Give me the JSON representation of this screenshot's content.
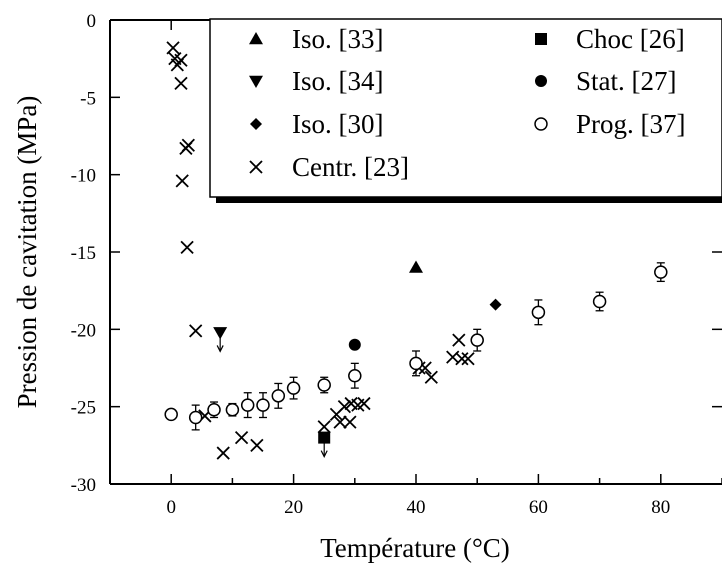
{
  "chart_data": {
    "type": "scatter",
    "xlabel": "Température (°C)",
    "ylabel": "Pression de cavitation (MPa)",
    "xlim": [
      -10,
      90
    ],
    "ylim": [
      -30,
      0
    ],
    "x_ticks": [
      0,
      20,
      40,
      60,
      80
    ],
    "y_ticks": [
      0,
      -5,
      -10,
      -15,
      -20,
      -25,
      -30
    ],
    "grid": false,
    "legend_position": "top-right",
    "series": [
      {
        "name": "Iso. [33]",
        "marker": "triangle-up",
        "points": [
          {
            "x": 40,
            "y": -16
          }
        ]
      },
      {
        "name": "Iso. [34]",
        "marker": "triangle-down",
        "upper_bound": true,
        "points": [
          {
            "x": 8,
            "y": -20.2
          }
        ]
      },
      {
        "name": "Iso. [30]",
        "marker": "diamond",
        "points": [
          {
            "x": 53,
            "y": -18.4
          }
        ]
      },
      {
        "name": "Centr. [23]",
        "marker": "cross",
        "points": [
          {
            "x": 0.3,
            "y": -1.8
          },
          {
            "x": 0.6,
            "y": -2.5
          },
          {
            "x": 1.0,
            "y": -2.9
          },
          {
            "x": 1.6,
            "y": -2.6
          },
          {
            "x": 1.6,
            "y": -4.1
          },
          {
            "x": 2.4,
            "y": -8.3
          },
          {
            "x": 2.8,
            "y": -8.1
          },
          {
            "x": 1.8,
            "y": -10.4
          },
          {
            "x": 2.6,
            "y": -14.7
          },
          {
            "x": 4.0,
            "y": -20.1
          },
          {
            "x": 5.5,
            "y": -25.6
          },
          {
            "x": 8.5,
            "y": -28.0
          },
          {
            "x": 11.5,
            "y": -27.0
          },
          {
            "x": 14.0,
            "y": -27.5
          },
          {
            "x": 25.0,
            "y": -26.3
          },
          {
            "x": 27.0,
            "y": -25.5
          },
          {
            "x": 27.6,
            "y": -26.0
          },
          {
            "x": 28.3,
            "y": -25.0
          },
          {
            "x": 29.2,
            "y": -26.0
          },
          {
            "x": 29.4,
            "y": -24.8
          },
          {
            "x": 30.5,
            "y": -24.9
          },
          {
            "x": 31.5,
            "y": -24.8
          },
          {
            "x": 40.5,
            "y": -22.5
          },
          {
            "x": 41.5,
            "y": -22.5
          },
          {
            "x": 42.5,
            "y": -23.1
          },
          {
            "x": 46.0,
            "y": -21.8
          },
          {
            "x": 47.0,
            "y": -20.7
          },
          {
            "x": 47.5,
            "y": -21.9
          },
          {
            "x": 48.5,
            "y": -21.9
          }
        ]
      },
      {
        "name": "Choc [26]",
        "marker": "square",
        "upper_bound": true,
        "points": [
          {
            "x": 25,
            "y": -27
          }
        ]
      },
      {
        "name": "Stat. [27]",
        "marker": "circle-filled",
        "points": [
          {
            "x": 30,
            "y": -21
          }
        ]
      },
      {
        "name": "Prog. [37]",
        "marker": "circle-open",
        "points": [
          {
            "x": 0,
            "y": -25.5,
            "err": 0
          },
          {
            "x": 4,
            "y": -25.7,
            "err": 0.8
          },
          {
            "x": 7,
            "y": -25.2,
            "err": 0.5
          },
          {
            "x": 10,
            "y": -25.2,
            "err": 0.4
          },
          {
            "x": 12.5,
            "y": -24.9,
            "err": 0.8
          },
          {
            "x": 15,
            "y": -24.9,
            "err": 0.8
          },
          {
            "x": 17.5,
            "y": -24.3,
            "err": 0.8
          },
          {
            "x": 20,
            "y": -23.8,
            "err": 0.7
          },
          {
            "x": 25,
            "y": -23.6,
            "err": 0.5
          },
          {
            "x": 30,
            "y": -23.0,
            "err": 0.8
          },
          {
            "x": 40,
            "y": -22.2,
            "err": 0.8
          },
          {
            "x": 50,
            "y": -20.7,
            "err": 0.7
          },
          {
            "x": 60,
            "y": -18.9,
            "err": 0.8
          },
          {
            "x": 70,
            "y": -18.2,
            "err": 0.6
          },
          {
            "x": 80,
            "y": -16.3,
            "err": 0.6
          }
        ]
      }
    ]
  }
}
